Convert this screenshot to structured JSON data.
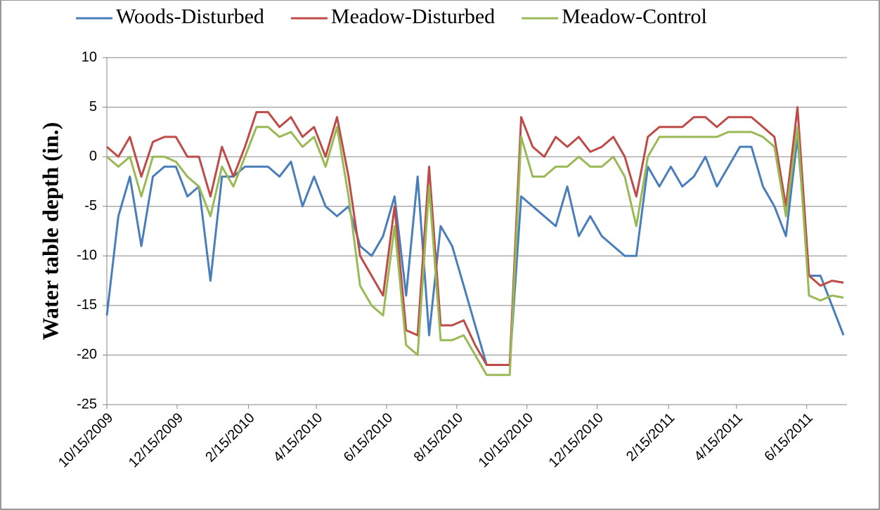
{
  "chart_data": {
    "type": "line",
    "ylabel": "Water table depth (in.)",
    "x": [
      "10/15/2009",
      "10/25/2009",
      "11/4/2009",
      "11/14/2009",
      "11/24/2009",
      "12/4/2009",
      "12/14/2009",
      "12/24/2009",
      "1/3/2010",
      "1/13/2010",
      "1/23/2010",
      "2/2/2010",
      "2/12/2010",
      "2/22/2010",
      "3/4/2010",
      "3/14/2010",
      "3/24/2010",
      "4/3/2010",
      "4/13/2010",
      "4/23/2010",
      "5/3/2010",
      "5/13/2010",
      "5/23/2010",
      "6/2/2010",
      "6/12/2010",
      "6/22/2010",
      "7/2/2010",
      "7/12/2010",
      "7/22/2010",
      "8/1/2010",
      "8/11/2010",
      "8/21/2010",
      "8/31/2010",
      "9/10/2010",
      "9/20/2010",
      "9/30/2010",
      "10/10/2010",
      "10/20/2010",
      "10/30/2010",
      "11/9/2010",
      "11/19/2010",
      "11/29/2010",
      "12/9/2010",
      "12/19/2010",
      "12/29/2010",
      "1/8/2011",
      "1/18/2011",
      "1/28/2011",
      "2/7/2011",
      "2/17/2011",
      "2/27/2011",
      "3/9/2011",
      "3/19/2011",
      "3/29/2011",
      "4/8/2011",
      "4/18/2011",
      "4/28/2011",
      "5/8/2011",
      "5/18/2011",
      "5/28/2011",
      "6/7/2011",
      "6/17/2011",
      "6/27/2011",
      "7/7/2011",
      "7/17/2011"
    ],
    "series": [
      {
        "name": "Woods-Disturbed",
        "color": "#4a7ebb",
        "values": [
          -16,
          -6,
          -2,
          -9,
          -2,
          -1,
          -1,
          -4,
          -3,
          -12.5,
          -2,
          -2,
          -1,
          -1,
          -1,
          -2,
          -0.5,
          -5,
          -2,
          -5,
          -6,
          -5,
          -9,
          -10,
          -8,
          -4,
          -14,
          -2,
          -18,
          -7,
          -9,
          -13,
          -17,
          -21,
          -21,
          -21,
          -4,
          -5,
          -6,
          -7,
          -3,
          -8,
          -6,
          -8,
          -9,
          -10,
          -10,
          -1,
          -3,
          -1,
          -3,
          -2,
          0,
          -3,
          -1,
          1,
          1,
          -3,
          -5,
          -8,
          2,
          -12,
          -12,
          -15,
          -18
        ]
      },
      {
        "name": "Meadow-Disturbed",
        "color": "#be4b48",
        "values": [
          1,
          0,
          2,
          -2,
          1.5,
          2,
          2,
          0,
          0,
          -4,
          1,
          -2,
          1,
          4.5,
          4.5,
          3,
          4,
          2,
          3,
          0,
          4,
          -2,
          -10,
          -12,
          -14,
          -5,
          -17.5,
          -18,
          -1,
          -17,
          -17,
          -16.5,
          -19,
          -21,
          -21,
          -21,
          4,
          1,
          0,
          2,
          1,
          2,
          0.5,
          1,
          2,
          0,
          -4,
          2,
          3,
          3,
          3,
          4,
          4,
          3,
          4,
          4,
          4,
          3,
          2,
          -5,
          5,
          -12,
          -13,
          -12.5,
          -12.7
        ]
      },
      {
        "name": "Meadow-Control",
        "color": "#98b954",
        "values": [
          0,
          -1,
          0,
          -4,
          0,
          0,
          -0.5,
          -2,
          -3,
          -6,
          -1,
          -3,
          0,
          3,
          3,
          2,
          2.5,
          1,
          2,
          -1,
          3,
          -4,
          -13,
          -15,
          -16,
          -7,
          -19,
          -20,
          -3,
          -18.5,
          -18.5,
          -18,
          -20,
          -22,
          -22,
          -22,
          2,
          -2,
          -2,
          -1,
          -1,
          0,
          -1,
          -1,
          0,
          -2,
          -7,
          0,
          2,
          2,
          2,
          2,
          2,
          2,
          2.5,
          2.5,
          2.5,
          2,
          1,
          -6,
          3,
          -14,
          -14.5,
          -14,
          -14.2
        ]
      }
    ],
    "xlim": [
      "10/15/2009",
      "7/20/2011"
    ],
    "xticks": [
      "10/15/2009",
      "12/15/2009",
      "2/15/2010",
      "4/15/2010",
      "6/15/2010",
      "8/15/2010",
      "10/15/2010",
      "12/15/2010",
      "2/15/2011",
      "4/15/2011",
      "6/15/2011"
    ],
    "ylim": [
      -25,
      10
    ],
    "yticks": [
      -25,
      -20,
      -15,
      -10,
      -5,
      0,
      5,
      10
    ],
    "grid": true,
    "legend": "top"
  }
}
